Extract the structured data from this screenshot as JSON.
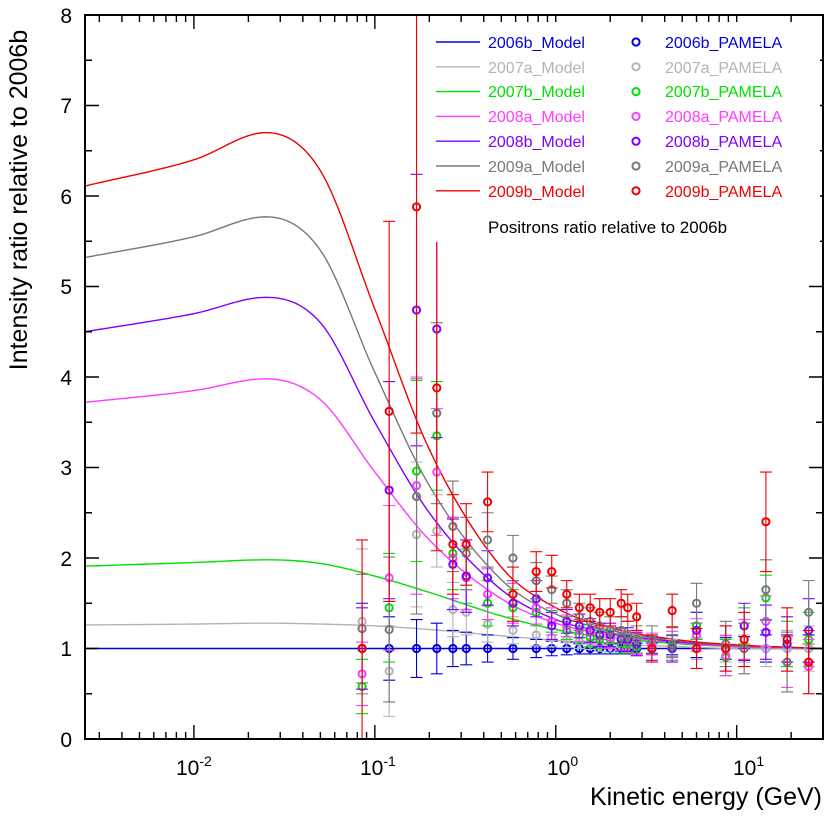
{
  "chart_data": {
    "type": "line",
    "title": "",
    "annotation": "Positrons ratio relative to 2006b",
    "xlabel": "Kinetic energy (GeV)",
    "ylabel": "Intensity ratio relative to 2006b",
    "xscale": "log",
    "xlim": [
      0.0025,
      30
    ],
    "ylim": [
      0,
      8
    ],
    "grid": false,
    "legend_position": "top-right",
    "y_ticks": [
      "0",
      "1",
      "2",
      "3",
      "4",
      "5",
      "6",
      "7",
      "8"
    ],
    "x_ticks": [
      {
        "base": "10",
        "exp": "-2",
        "value": 0.01
      },
      {
        "base": "10",
        "exp": "-1",
        "value": 0.1
      },
      {
        "base": "10",
        "exp": "0",
        "value": 1
      },
      {
        "base": "10",
        "exp": "1",
        "value": 10
      }
    ],
    "pamela_energies": [
      0.085,
      0.12,
      0.17,
      0.22,
      0.27,
      0.32,
      0.42,
      0.58,
      0.78,
      0.95,
      1.15,
      1.35,
      1.55,
      1.75,
      2.0,
      2.3,
      2.5,
      2.8,
      3.4,
      4.4,
      6.0,
      8.7,
      11,
      14.5,
      19,
      25
    ],
    "series": [
      {
        "name_model": "2006b_Model",
        "name_pamela": "2006b_PAMELA",
        "color": "#0000e0",
        "model": {
          "x": [
            0.0025,
            0.01,
            0.025,
            0.05,
            0.1,
            0.2,
            0.5,
            1,
            2,
            5,
            10,
            30
          ],
          "y": [
            1,
            1,
            1,
            1,
            1,
            1,
            1,
            1,
            1,
            1,
            1,
            1
          ]
        },
        "pamela": [
          1,
          1,
          1,
          1,
          1,
          1,
          1,
          1,
          1,
          1,
          1,
          1,
          1,
          1,
          1,
          1,
          1,
          1,
          1,
          1,
          1,
          1,
          1,
          1,
          1,
          1
        ],
        "err": [
          0.5,
          0.35,
          0.32,
          0.28,
          0.2,
          0.18,
          0.15,
          0.12,
          0.1,
          0.08,
          0.07,
          0.06,
          0.06,
          0.06,
          0.06,
          0.06,
          0.06,
          0.06,
          0.06,
          0.07,
          0.1,
          0.12,
          0.13,
          0.15,
          0.15,
          0.15
        ]
      },
      {
        "name_model": "2007a_Model",
        "name_pamela": "2007a_PAMELA",
        "color": "#b4b4b4",
        "model": {
          "x": [
            0.0025,
            0.01,
            0.025,
            0.05,
            0.1,
            0.2,
            0.5,
            1,
            2,
            5,
            10,
            30
          ],
          "y": [
            1.26,
            1.27,
            1.28,
            1.27,
            1.25,
            1.21,
            1.14,
            1.09,
            1.05,
            1.02,
            1.0,
            1.0
          ]
        },
        "pamela": [
          1.3,
          0.75,
          2.26,
          2.3,
          1.43,
          1.4,
          1.27,
          1.2,
          1.15,
          1.12,
          1.1,
          1.08,
          1.07,
          1.05,
          1.04,
          1.03,
          1.03,
          1.02,
          1.01,
          1.0,
          1.0,
          1.0,
          1.0,
          1.0,
          1.0,
          1.0
        ],
        "err": [
          0.8,
          0.5,
          0.8,
          0.4,
          0.3,
          0.25,
          0.2,
          0.15,
          0.12,
          0.1,
          0.09,
          0.08,
          0.08,
          0.08,
          0.08,
          0.08,
          0.08,
          0.08,
          0.08,
          0.1,
          0.12,
          0.15,
          0.15,
          0.2,
          0.2,
          0.25
        ]
      },
      {
        "name_model": "2007b_Model",
        "name_pamela": "2007b_PAMELA",
        "color": "#00e000",
        "model": {
          "x": [
            0.0025,
            0.01,
            0.025,
            0.05,
            0.1,
            0.2,
            0.5,
            1,
            2,
            5,
            10,
            30
          ],
          "y": [
            1.91,
            1.95,
            1.98,
            1.94,
            1.8,
            1.62,
            1.36,
            1.21,
            1.12,
            1.05,
            1.02,
            1.0
          ]
        },
        "pamela": [
          0.58,
          1.45,
          2.96,
          3.35,
          2.05,
          1.8,
          1.5,
          1.45,
          1.4,
          1.3,
          1.2,
          1.15,
          1.12,
          1.1,
          1.1,
          1.05,
          1.05,
          1.02,
          1.05,
          1.02,
          1.25,
          0.9,
          1.25,
          1.56,
          1.05,
          1.1
        ],
        "err": [
          0.3,
          0.6,
          1.0,
          0.6,
          0.4,
          0.3,
          0.25,
          0.2,
          0.15,
          0.12,
          0.1,
          0.1,
          0.1,
          0.1,
          0.1,
          0.1,
          0.1,
          0.1,
          0.1,
          0.12,
          0.15,
          0.2,
          0.2,
          0.25,
          0.25,
          0.3
        ]
      },
      {
        "name_model": "2008a_Model",
        "name_pamela": "2008a_PAMELA",
        "color": "#ff3cff",
        "model": {
          "x": [
            0.0025,
            0.01,
            0.025,
            0.05,
            0.1,
            0.2,
            0.5,
            1,
            2,
            5,
            10,
            30
          ],
          "y": [
            3.72,
            3.85,
            3.98,
            3.75,
            2.95,
            2.2,
            1.55,
            1.28,
            1.15,
            1.06,
            1.02,
            1.0
          ]
        },
        "pamela": [
          0.72,
          1.78,
          2.8,
          2.95,
          2.0,
          1.78,
          1.6,
          1.5,
          1.45,
          1.3,
          1.25,
          1.2,
          1.18,
          1.15,
          1.12,
          1.1,
          1.08,
          1.05,
          1.05,
          1.05,
          1.15,
          0.92,
          1.1,
          1.3,
          0.85,
          0.8
        ],
        "err": [
          0.35,
          0.8,
          1.2,
          0.7,
          0.45,
          0.35,
          0.28,
          0.22,
          0.18,
          0.15,
          0.12,
          0.12,
          0.12,
          0.12,
          0.12,
          0.12,
          0.12,
          0.12,
          0.12,
          0.14,
          0.18,
          0.22,
          0.22,
          0.28,
          0.28,
          0.3
        ]
      },
      {
        "name_model": "2008b_Model",
        "name_pamela": "2008b_PAMELA",
        "color": "#8000ff",
        "model": {
          "x": [
            0.0025,
            0.01,
            0.025,
            0.05,
            0.1,
            0.2,
            0.5,
            1,
            2,
            5,
            10,
            30
          ],
          "y": [
            4.5,
            4.7,
            4.88,
            4.6,
            3.5,
            2.5,
            1.65,
            1.32,
            1.17,
            1.07,
            1.03,
            1.0
          ]
        },
        "pamela": [
          1.0,
          2.75,
          4.74,
          4.53,
          1.93,
          1.8,
          1.78,
          1.5,
          1.55,
          1.25,
          1.3,
          1.25,
          1.2,
          1.15,
          1.15,
          1.1,
          1.1,
          1.05,
          1.0,
          1.0,
          1.2,
          1.0,
          1.25,
          1.18,
          1.05,
          1.2
        ],
        "err": [
          0.45,
          1.2,
          1.5,
          1.2,
          0.5,
          0.4,
          0.3,
          0.25,
          0.2,
          0.15,
          0.13,
          0.13,
          0.13,
          0.13,
          0.13,
          0.13,
          0.13,
          0.13,
          0.13,
          0.15,
          0.2,
          0.25,
          0.25,
          0.3,
          0.3,
          0.35
        ]
      },
      {
        "name_model": "2009a_Model",
        "name_pamela": "2009a_PAMELA",
        "color": "#787878",
        "model": {
          "x": [
            0.0025,
            0.01,
            0.025,
            0.05,
            0.1,
            0.2,
            0.5,
            1,
            2,
            5,
            10,
            30
          ],
          "y": [
            5.32,
            5.55,
            5.77,
            5.4,
            4.05,
            2.8,
            1.76,
            1.38,
            1.2,
            1.08,
            1.03,
            1.0
          ]
        },
        "pamela": [
          1.22,
          1.21,
          2.68,
          3.6,
          2.35,
          2.05,
          2.2,
          2.0,
          1.75,
          1.65,
          1.5,
          1.35,
          1.3,
          1.25,
          1.2,
          1.2,
          1.15,
          1.1,
          1.1,
          1.05,
          1.5,
          1.05,
          1.0,
          1.65,
          0.85,
          1.4
        ],
        "err": [
          0.6,
          0.8,
          1.3,
          1.0,
          0.5,
          0.4,
          0.3,
          0.25,
          0.2,
          0.15,
          0.15,
          0.15,
          0.15,
          0.15,
          0.15,
          0.15,
          0.15,
          0.15,
          0.15,
          0.18,
          0.22,
          0.25,
          0.28,
          0.33,
          0.33,
          0.35
        ]
      },
      {
        "name_model": "2009b_Model",
        "name_pamela": "2009b_PAMELA",
        "color": "#f00000",
        "model": {
          "x": [
            0.0025,
            0.01,
            0.025,
            0.05,
            0.1,
            0.2,
            0.5,
            1,
            2,
            5,
            10,
            30
          ],
          "y": [
            6.11,
            6.4,
            6.7,
            6.28,
            4.75,
            3.2,
            1.9,
            1.45,
            1.23,
            1.09,
            1.04,
            1.0
          ]
        },
        "pamela": [
          1.0,
          3.62,
          5.88,
          3.88,
          2.15,
          2.15,
          2.62,
          1.6,
          1.85,
          1.85,
          1.6,
          1.45,
          1.45,
          1.4,
          1.4,
          1.5,
          1.45,
          1.35,
          1.0,
          1.42,
          1.0,
          1.0,
          1.1,
          2.4,
          1.1,
          0.85
        ],
        "err": [
          1.2,
          2.1,
          2.5,
          1.8,
          0.55,
          0.45,
          0.33,
          0.3,
          0.22,
          0.18,
          0.15,
          0.15,
          0.15,
          0.15,
          0.15,
          0.15,
          0.15,
          0.15,
          0.15,
          0.18,
          0.22,
          0.25,
          0.3,
          0.55,
          0.35,
          0.35
        ]
      }
    ]
  }
}
